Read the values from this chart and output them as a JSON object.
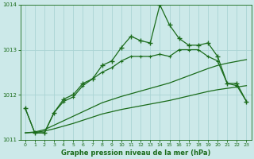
{
  "xlabel": "Graphe pression niveau de la mer (hPa)",
  "background_color": "#cce9e9",
  "grid_color": "#aad4d4",
  "line_color": "#1a6b1a",
  "x_hours": [
    0,
    1,
    2,
    3,
    4,
    5,
    6,
    7,
    8,
    9,
    10,
    11,
    12,
    13,
    14,
    15,
    16,
    17,
    18,
    19,
    20,
    21,
    22,
    23
  ],
  "series_jagged": [
    1011.7,
    1011.15,
    1011.15,
    1011.6,
    1011.9,
    1012.0,
    1012.25,
    1012.35,
    1012.65,
    1012.75,
    1013.05,
    1013.3,
    1013.2,
    1013.15,
    1014.0,
    1013.55,
    1013.25,
    1013.1,
    1013.1,
    1013.15,
    1012.85,
    1012.25,
    1012.25,
    1011.85
  ],
  "series_medium": [
    1011.7,
    1011.15,
    1011.15,
    1011.6,
    1011.85,
    1011.95,
    1012.2,
    1012.35,
    1012.5,
    1012.6,
    1012.75,
    1012.85,
    1012.85,
    1012.85,
    1012.9,
    1012.85,
    1013.0,
    1013.0,
    1013.0,
    1012.85,
    1012.75,
    1012.25,
    1012.2,
    1011.85
  ],
  "series_smooth1": [
    1011.15,
    1011.17,
    1011.22,
    1011.32,
    1011.42,
    1011.52,
    1011.62,
    1011.72,
    1011.82,
    1011.89,
    1011.96,
    1012.02,
    1012.08,
    1012.14,
    1012.2,
    1012.26,
    1012.34,
    1012.42,
    1012.5,
    1012.58,
    1012.65,
    1012.7,
    1012.74,
    1012.78
  ],
  "series_smooth2": [
    1011.15,
    1011.16,
    1011.19,
    1011.24,
    1011.3,
    1011.36,
    1011.43,
    1011.5,
    1011.57,
    1011.62,
    1011.67,
    1011.71,
    1011.75,
    1011.79,
    1011.83,
    1011.87,
    1011.92,
    1011.97,
    1012.02,
    1012.07,
    1012.11,
    1012.14,
    1012.17,
    1012.2
  ],
  "ylim": [
    1011.0,
    1014.0
  ],
  "yticks": [
    1011,
    1012,
    1013,
    1014
  ],
  "xticks": [
    0,
    1,
    2,
    3,
    4,
    5,
    6,
    7,
    8,
    9,
    10,
    11,
    12,
    13,
    14,
    15,
    16,
    17,
    18,
    19,
    20,
    21,
    22,
    23
  ]
}
